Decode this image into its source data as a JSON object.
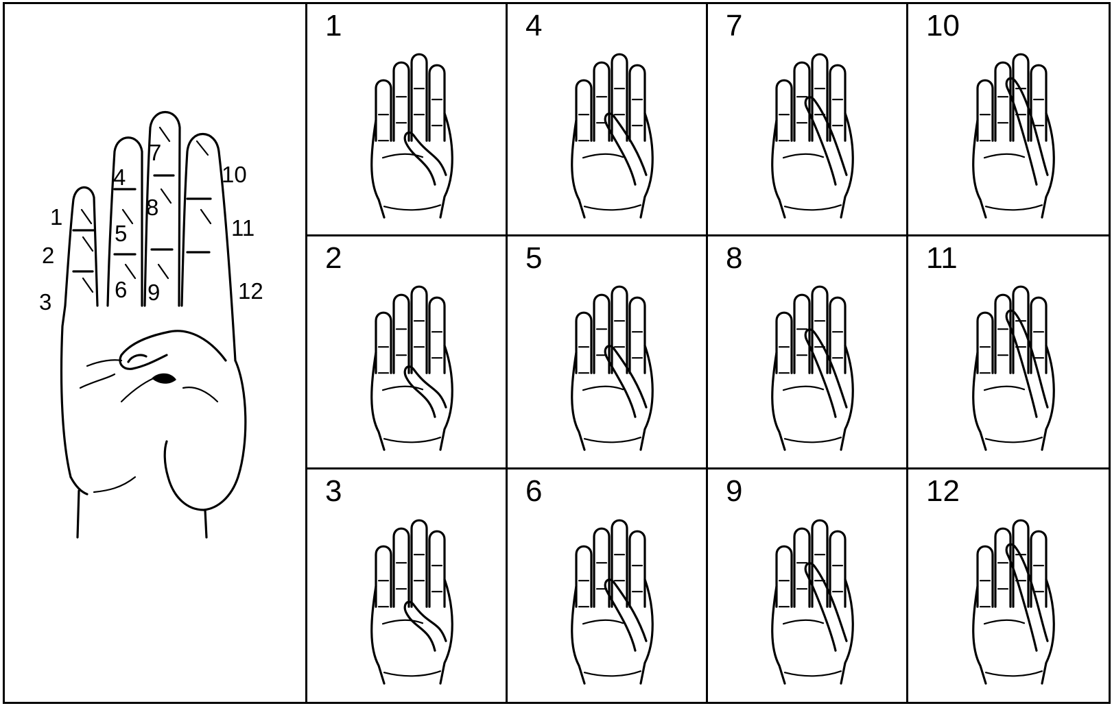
{
  "reference_hand": {
    "phalanx_labels": [
      "1",
      "2",
      "3",
      "4",
      "5",
      "6",
      "7",
      "8",
      "9",
      "10",
      "11",
      "12"
    ]
  },
  "panels": [
    {
      "number": "1"
    },
    {
      "number": "4"
    },
    {
      "number": "7"
    },
    {
      "number": "10"
    },
    {
      "number": "2"
    },
    {
      "number": "5"
    },
    {
      "number": "8"
    },
    {
      "number": "11"
    },
    {
      "number": "3"
    },
    {
      "number": "6"
    },
    {
      "number": "9"
    },
    {
      "number": "12"
    }
  ]
}
